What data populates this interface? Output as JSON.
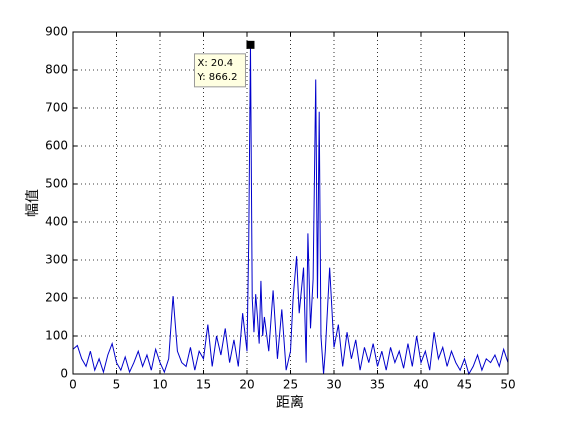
{
  "chart_data": {
    "type": "line",
    "xlabel": "距离",
    "ylabel": "幅值",
    "x": [
      0,
      0.5,
      1,
      1.5,
      2,
      2.5,
      3,
      3.5,
      4,
      4.5,
      5,
      5.5,
      6,
      6.5,
      7,
      7.5,
      8,
      8.5,
      9,
      9.5,
      10,
      10.5,
      11,
      11.5,
      12,
      12.5,
      13,
      13.5,
      14,
      14.5,
      15,
      15.5,
      16,
      16.5,
      17,
      17.5,
      18,
      18.5,
      19,
      19.5,
      20,
      20.2,
      20.4,
      20.6,
      20.8,
      21,
      21.2,
      21.4,
      21.6,
      21.8,
      22,
      22.5,
      23,
      23.5,
      24,
      24.5,
      25,
      25.3,
      25.7,
      26,
      26.5,
      26.8,
      27,
      27.3,
      27.6,
      27.9,
      28.1,
      28.3,
      28.5,
      28.8,
      29,
      29.5,
      30,
      30.5,
      31,
      31.5,
      32,
      32.5,
      33,
      33.5,
      34,
      34.5,
      35,
      35.5,
      36,
      36.5,
      37,
      37.5,
      38,
      38.5,
      39,
      39.5,
      40,
      40.5,
      41,
      41.5,
      42,
      42.5,
      43,
      43.5,
      44,
      44.5,
      45,
      45.5,
      46,
      46.5,
      47,
      47.5,
      48,
      48.5,
      49,
      49.5,
      50
    ],
    "series": [
      {
        "name": "幅值",
        "color": "#0000cc",
        "values": [
          65,
          75,
          40,
          20,
          60,
          10,
          40,
          5,
          50,
          80,
          30,
          10,
          45,
          5,
          30,
          60,
          20,
          50,
          10,
          65,
          30,
          5,
          40,
          205,
          60,
          30,
          20,
          70,
          10,
          60,
          40,
          130,
          20,
          100,
          50,
          120,
          30,
          90,
          20,
          160,
          60,
          350,
          866.2,
          200,
          110,
          210,
          150,
          80,
          245,
          100,
          150,
          60,
          220,
          40,
          170,
          10,
          60,
          200,
          310,
          160,
          280,
          30,
          370,
          120,
          250,
          775,
          200,
          690,
          100,
          0,
          60,
          280,
          70,
          130,
          20,
          110,
          40,
          90,
          10,
          70,
          30,
          80,
          20,
          60,
          10,
          70,
          30,
          60,
          15,
          80,
          20,
          100,
          30,
          60,
          10,
          110,
          40,
          70,
          20,
          60,
          30,
          10,
          40,
          0,
          20,
          50,
          10,
          40,
          30,
          50,
          20,
          65,
          30
        ]
      }
    ],
    "xlim": [
      0,
      50
    ],
    "xticks": [
      0,
      5,
      10,
      15,
      20,
      25,
      30,
      35,
      40,
      45,
      50
    ],
    "ylim": [
      0,
      900
    ],
    "yticks": [
      0,
      100,
      200,
      300,
      400,
      500,
      600,
      700,
      800,
      900
    ],
    "grid": true,
    "data_tip": {
      "x": 20.4,
      "y": 866.2,
      "labels": [
        "X: 20.4",
        "Y: 866.2"
      ]
    }
  }
}
